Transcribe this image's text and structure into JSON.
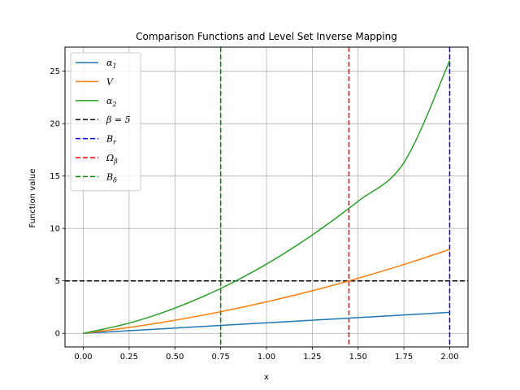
{
  "chart_data": {
    "type": "line",
    "title": "Comparison Functions and Level Set Inverse Mapping",
    "xlabel": "x",
    "ylabel": "Function value",
    "xlim": [
      -0.1,
      2.1
    ],
    "ylim": [
      -1.3,
      27.3
    ],
    "xticks": [
      0.0,
      0.25,
      0.5,
      0.75,
      1.0,
      1.25,
      1.5,
      1.75,
      2.0
    ],
    "xtick_labels": [
      "0.00",
      "0.25",
      "0.50",
      "0.75",
      "1.00",
      "1.25",
      "1.50",
      "1.75",
      "2.00"
    ],
    "yticks": [
      0,
      5,
      10,
      15,
      20,
      25
    ],
    "ytick_labels": [
      "0",
      "5",
      "10",
      "15",
      "20",
      "25"
    ],
    "grid": true,
    "legend_position": "upper-left",
    "series": [
      {
        "name": "α₁",
        "color": "#1f77b4",
        "style": "solid",
        "x": [
          0.0,
          0.25,
          0.5,
          0.75,
          1.0,
          1.25,
          1.5,
          1.75,
          2.0
        ],
        "y": [
          0.0,
          0.25,
          0.5,
          0.75,
          1.0,
          1.25,
          1.5,
          1.75,
          2.0
        ]
      },
      {
        "name": "V",
        "color": "#ff7f0e",
        "style": "solid",
        "x": [
          0.0,
          0.25,
          0.5,
          0.75,
          1.0,
          1.25,
          1.5,
          1.75,
          2.0
        ],
        "y": [
          0.0,
          0.56,
          1.25,
          2.06,
          3.0,
          4.06,
          5.25,
          6.56,
          8.0
        ]
      },
      {
        "name": "α₂",
        "color": "#2ca02c",
        "style": "solid",
        "x": [
          0.0,
          0.25,
          0.5,
          0.75,
          1.0,
          1.25,
          1.5,
          1.75,
          2.0
        ],
        "y": [
          0.0,
          0.97,
          2.4,
          4.28,
          6.6,
          9.38,
          12.6,
          16.28,
          26.0
        ]
      }
    ],
    "hlines": [
      {
        "name": "β = 5",
        "y": 5,
        "color": "#000000",
        "style": "dashed"
      }
    ],
    "vlines": [
      {
        "name": "B_r",
        "x": 2.0,
        "color": "#0000ff",
        "style": "dashed"
      },
      {
        "name": "Ω_β",
        "x": 1.45,
        "color": "#ff0000",
        "style": "dashed"
      },
      {
        "name": "B_δ",
        "x": 0.75,
        "color": "#008000",
        "style": "dashed"
      }
    ],
    "legend": [
      {
        "label": "α",
        "sub": "1",
        "color": "#1f77b4",
        "style": "solid"
      },
      {
        "label": "V",
        "sub": "",
        "color": "#ff7f0e",
        "style": "solid"
      },
      {
        "label": "α",
        "sub": "2",
        "color": "#2ca02c",
        "style": "solid"
      },
      {
        "label": "β = 5",
        "sub": "",
        "color": "#000000",
        "style": "dashed"
      },
      {
        "label": "B",
        "sub": "r",
        "color": "#0000ff",
        "style": "dashed"
      },
      {
        "label": "Ω",
        "sub": "β",
        "color": "#ff0000",
        "style": "dashed"
      },
      {
        "label": "B",
        "sub": "δ",
        "color": "#008000",
        "style": "dashed"
      }
    ]
  }
}
